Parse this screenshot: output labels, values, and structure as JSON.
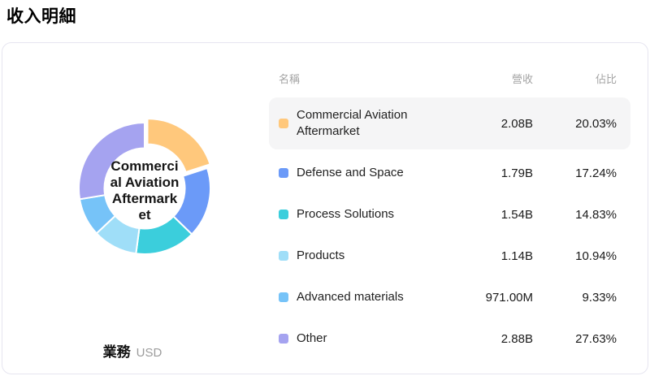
{
  "page": {
    "title": "收入明細"
  },
  "chart": {
    "dimension_label": "業務",
    "unit": "USD",
    "center_label": "Commercial Aviation Aftermarket",
    "center_label_lines": [
      "Commerci",
      "al Aviation",
      "Aftermark",
      "et"
    ]
  },
  "chart_data": {
    "type": "pie",
    "subtype": "donut",
    "title": "收入明細",
    "unit": "USD",
    "dimension": "業務",
    "legend_position": "right-table",
    "center_label": "Commercial Aviation Aftermarket",
    "segments": [
      {
        "label": "Commercial Aviation Aftermarket",
        "revenue_display": "2.08B",
        "percent": 20.03,
        "percent_display": "20.03%",
        "color": "#FFC87C",
        "exploded": true,
        "highlighted": true
      },
      {
        "label": "Defense and Space",
        "revenue_display": "1.79B",
        "percent": 17.24,
        "percent_display": "17.24%",
        "color": "#6B9AF8",
        "exploded": false,
        "highlighted": false
      },
      {
        "label": "Process Solutions",
        "revenue_display": "1.54B",
        "percent": 14.83,
        "percent_display": "14.83%",
        "color": "#3BCEDC",
        "exploded": false,
        "highlighted": false
      },
      {
        "label": "Products",
        "revenue_display": "1.14B",
        "percent": 10.94,
        "percent_display": "10.94%",
        "color": "#9FDEF8",
        "exploded": false,
        "highlighted": false
      },
      {
        "label": "Advanced materials",
        "revenue_display": "971.00M",
        "percent": 9.33,
        "percent_display": "9.33%",
        "color": "#76C3F8",
        "exploded": false,
        "highlighted": false
      },
      {
        "label": "Other",
        "revenue_display": "2.88B",
        "percent": 27.63,
        "percent_display": "27.63%",
        "color": "#A5A3F0",
        "exploded": false,
        "highlighted": false
      }
    ]
  },
  "table": {
    "headers": {
      "name": "名稱",
      "revenue": "營收",
      "share": "佔比"
    }
  }
}
